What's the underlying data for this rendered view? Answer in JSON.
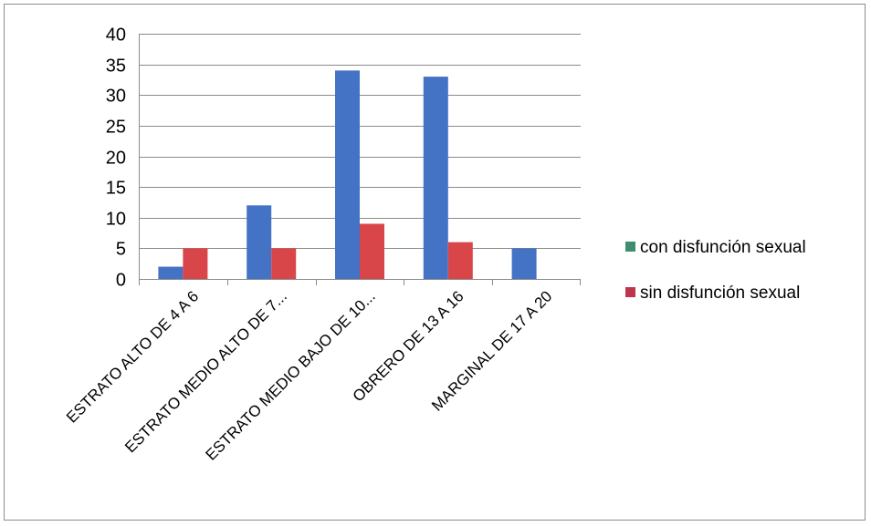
{
  "chart_data": {
    "type": "bar",
    "categories": [
      "ESTRATO ALTO DE 4 A 6",
      "ESTRATO MEDIO ALTO DE 7...",
      "ESTRATO MEDIO BAJO DE 10...",
      "OBRERO DE 13 A 16",
      "MARGINAL DE 17 A 20"
    ],
    "series": [
      {
        "name": "con disfunción sexual",
        "values": [
          2,
          12,
          34,
          33,
          5
        ],
        "color": "#4472c4"
      },
      {
        "name": "sin disfunción sexual",
        "values": [
          5,
          5,
          9,
          6,
          0
        ],
        "color": "#d9464a"
      }
    ],
    "legend_colors": [
      "#3d8d6e",
      "#c0334d"
    ],
    "yticks": [
      0,
      5,
      10,
      15,
      20,
      25,
      30,
      35,
      40
    ],
    "ylim": [
      0,
      40
    ],
    "grid": true,
    "legend_position": "right"
  }
}
